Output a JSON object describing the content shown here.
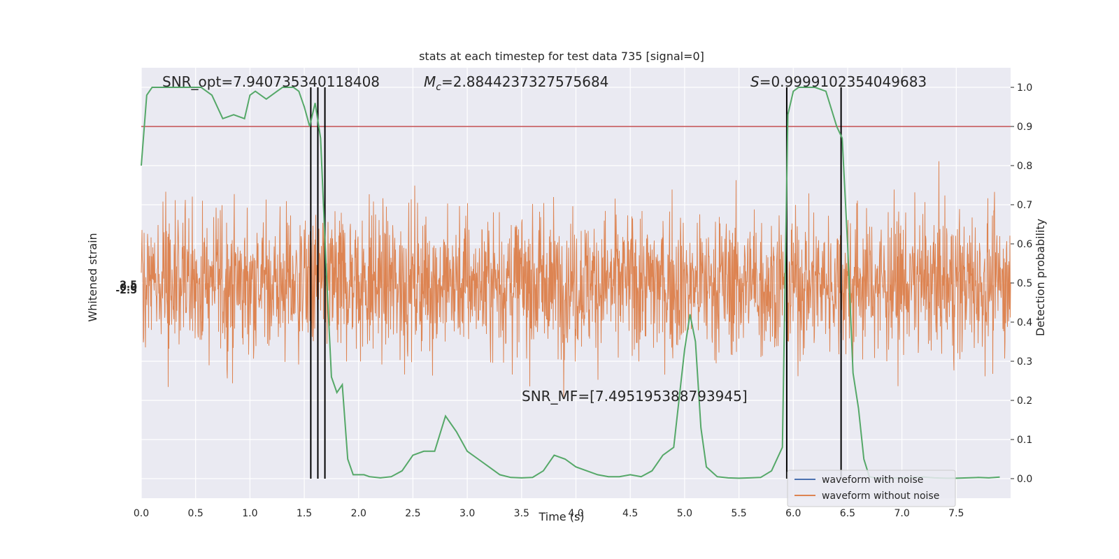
{
  "chart_data": {
    "type": "line",
    "title": "stats at each timestep for test data 735 [signal=0]",
    "xlabel": "Time (s)",
    "ylabel_left": "Whitened strain",
    "ylabel_right": "Detection probability",
    "xlim": [
      0,
      8.0
    ],
    "ylim_right": [
      -0.05,
      1.05
    ],
    "x_ticks": [
      "0.0",
      "0.5",
      "1.0",
      "1.5",
      "2.0",
      "2.5",
      "3.0",
      "3.5",
      "4.0",
      "4.5",
      "5.0",
      "5.5",
      "6.0",
      "6.5",
      "7.0",
      "7.5"
    ],
    "y_ticks_right": [
      "0.0",
      "0.1",
      "0.2",
      "0.3",
      "0.4",
      "0.5",
      "0.6",
      "0.7",
      "0.8",
      "0.9",
      "1.0"
    ],
    "left_tick_labels_overlapping": [
      "-2.5",
      "0.0",
      "2.5"
    ],
    "grid": true,
    "threshold": 0.9,
    "annotations": {
      "snr_opt": "SNR_opt=7.940735340118408",
      "mc_symbol": "M",
      "mc_sub": "c",
      "mc_value": "=2.8844237327575684",
      "s_symbol": "S",
      "s_value": "=0.9999102354049683",
      "snr_mf": "SNR_MF=[7.495195388793945]"
    },
    "vertical_lines_x": [
      1.56,
      1.625,
      1.69,
      5.94,
      6.44
    ],
    "legend": [
      "waveform with noise",
      "waveform without noise"
    ],
    "legend_position": "lower-right",
    "colors": {
      "noise": "#4c72b0",
      "strain": "#dd8452",
      "probability": "#55a868",
      "threshold": "#c44e52",
      "background": "#eaeaf2"
    },
    "probability_series": {
      "name": "Detection probability",
      "x": [
        0,
        0.05,
        0.1,
        0.15,
        0.25,
        0.35,
        0.45,
        0.55,
        0.65,
        0.75,
        0.85,
        0.95,
        1.0,
        1.05,
        1.15,
        1.25,
        1.3,
        1.4,
        1.45,
        1.5,
        1.55,
        1.6,
        1.65,
        1.7,
        1.75,
        1.8,
        1.85,
        1.9,
        1.95,
        2.0,
        2.05,
        2.1,
        2.2,
        2.3,
        2.4,
        2.5,
        2.6,
        2.7,
        2.8,
        2.9,
        3.0,
        3.1,
        3.2,
        3.3,
        3.4,
        3.5,
        3.6,
        3.7,
        3.8,
        3.9,
        4.0,
        4.1,
        4.2,
        4.3,
        4.4,
        4.5,
        4.6,
        4.7,
        4.8,
        4.9,
        5.0,
        5.05,
        5.1,
        5.15,
        5.2,
        5.3,
        5.4,
        5.5,
        5.6,
        5.7,
        5.8,
        5.9,
        5.95,
        6.0,
        6.05,
        6.1,
        6.2,
        6.3,
        6.4,
        6.45,
        6.5,
        6.55,
        6.6,
        6.65,
        6.7,
        6.75,
        6.8,
        6.9,
        7.0,
        7.1,
        7.2,
        7.3,
        7.4,
        7.5,
        7.6,
        7.7,
        7.8,
        7.9
      ],
      "y": [
        0.8,
        0.98,
        1.0,
        1.0,
        1.0,
        1.0,
        1.0,
        1.0,
        0.98,
        0.92,
        0.93,
        0.92,
        0.98,
        0.99,
        0.97,
        0.99,
        1.0,
        1.0,
        0.99,
        0.95,
        0.9,
        0.96,
        0.87,
        0.55,
        0.26,
        0.22,
        0.24,
        0.05,
        0.01,
        0.01,
        0.01,
        0.005,
        0.002,
        0.005,
        0.02,
        0.06,
        0.07,
        0.07,
        0.16,
        0.12,
        0.07,
        0.05,
        0.03,
        0.01,
        0.003,
        0.002,
        0.003,
        0.02,
        0.06,
        0.05,
        0.03,
        0.02,
        0.01,
        0.005,
        0.005,
        0.01,
        0.005,
        0.02,
        0.06,
        0.08,
        0.33,
        0.42,
        0.35,
        0.13,
        0.03,
        0.005,
        0.002,
        0.001,
        0.002,
        0.003,
        0.02,
        0.08,
        0.93,
        0.99,
        1.0,
        1.0,
        1.0,
        0.99,
        0.9,
        0.87,
        0.6,
        0.27,
        0.18,
        0.05,
        0.005,
        0.002,
        0.001,
        0.001,
        0.002,
        0.003,
        0.004,
        0.002,
        0.001,
        0.001,
        0.002,
        0.003,
        0.002,
        0.004
      ]
    }
  }
}
